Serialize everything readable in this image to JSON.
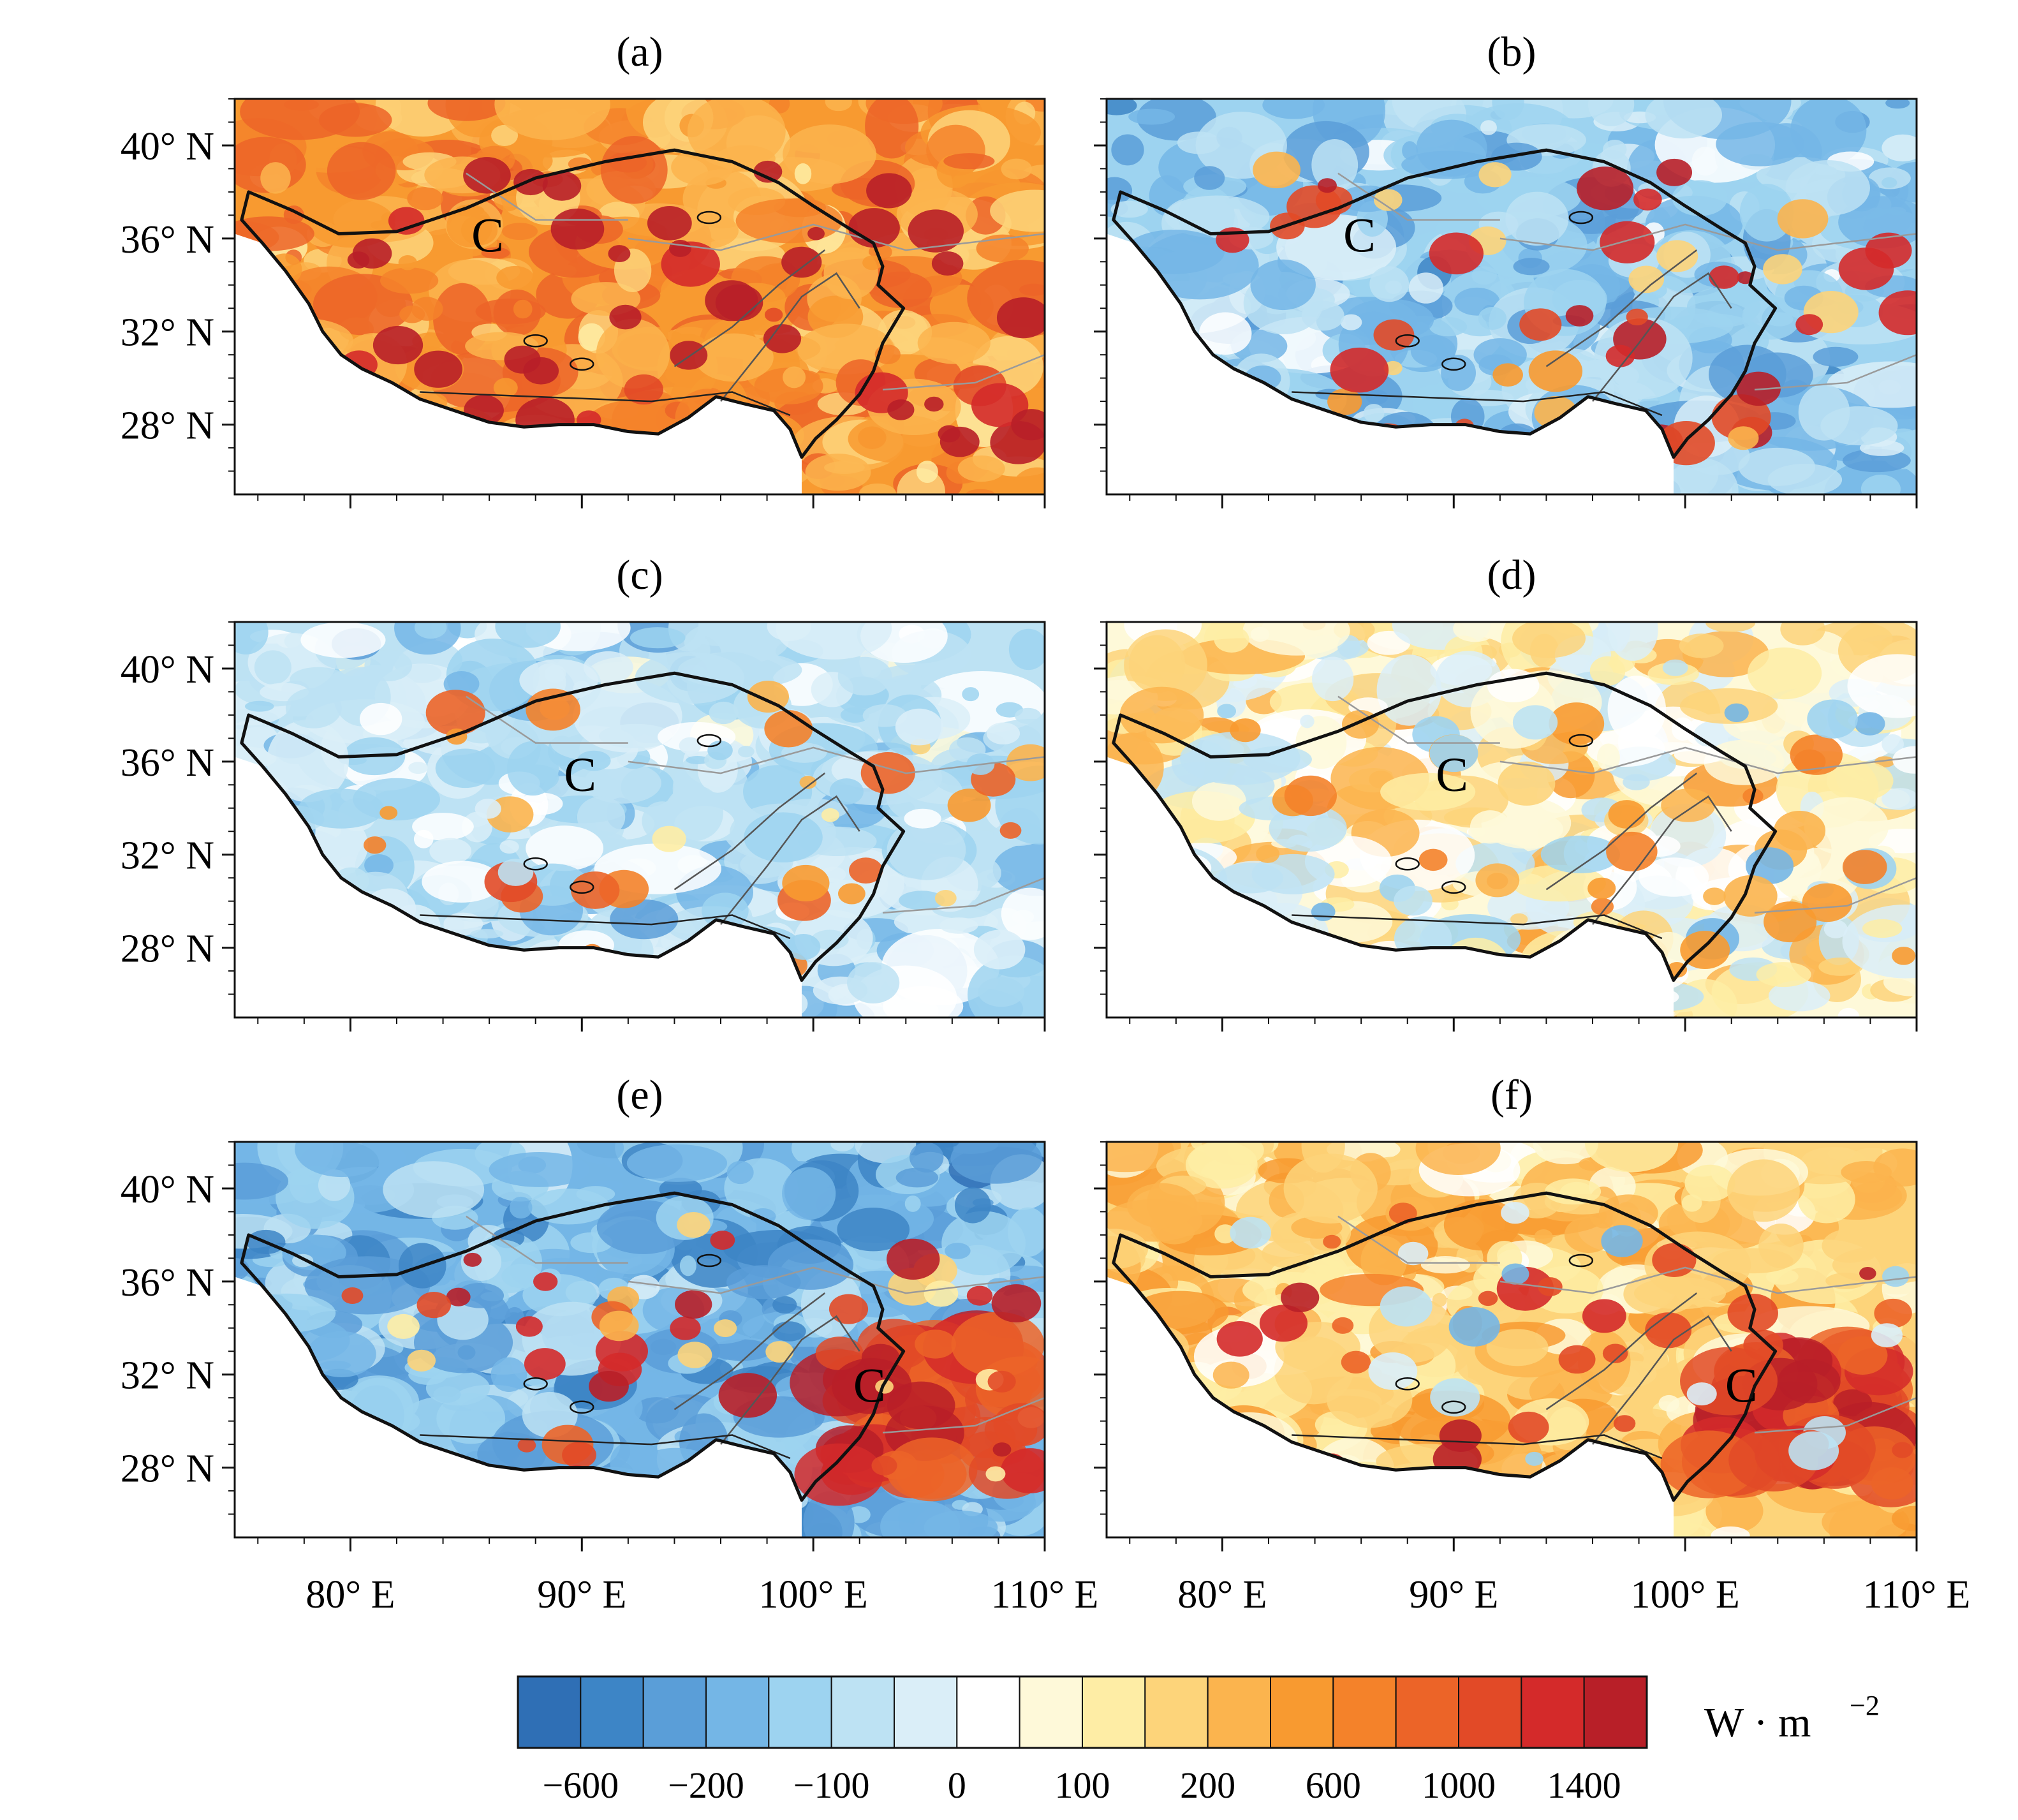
{
  "figure": {
    "panels": [
      {
        "id": "a",
        "title": "(a)",
        "center_label": "C",
        "pattern": "warm_strong",
        "center_lonlat": [
          86,
          36.2
        ]
      },
      {
        "id": "b",
        "title": "(b)",
        "center_label": "C",
        "pattern": "cool_mixed",
        "center_lonlat": [
          86,
          36.2
        ]
      },
      {
        "id": "c",
        "title": "(c)",
        "center_label": "C",
        "pattern": "cool_light",
        "center_lonlat": [
          90,
          35.5
        ]
      },
      {
        "id": "d",
        "title": "(d)",
        "center_label": "C",
        "pattern": "mixed_warm",
        "center_lonlat": [
          90,
          35.5
        ]
      },
      {
        "id": "e",
        "title": "(e)",
        "center_label": "C",
        "pattern": "cool_se_warm",
        "center_lonlat": [
          102.5,
          31.6
        ]
      },
      {
        "id": "f",
        "title": "(f)",
        "center_label": "C",
        "pattern": "warm_se_strong",
        "center_lonlat": [
          102.5,
          31.6
        ]
      }
    ],
    "lat_ticks": [
      {
        "value": 40,
        "label": "40° N"
      },
      {
        "value": 36,
        "label": "36° N"
      },
      {
        "value": 32,
        "label": "32° N"
      },
      {
        "value": 28,
        "label": "28° N"
      }
    ],
    "lon_ticks": [
      {
        "value": 80,
        "label": "80° E"
      },
      {
        "value": 90,
        "label": "90° E"
      },
      {
        "value": 100,
        "label": "100° E"
      },
      {
        "value": 110,
        "label": "110° E"
      }
    ],
    "lon_range": [
      75,
      110
    ],
    "lat_range": [
      25,
      42
    ],
    "colorbar": {
      "colors": [
        "#2f6fb5",
        "#3d85c6",
        "#5a9ed8",
        "#74b6e6",
        "#9dd3f0",
        "#bde2f3",
        "#daeef8",
        "#ffffff",
        "#fef9d9",
        "#feeda5",
        "#fdd47a",
        "#fbb44e",
        "#f89a30",
        "#f4822a",
        "#ec6428",
        "#e24a27",
        "#d42a2a",
        "#b81f28"
      ],
      "labels": [
        "−600",
        "−200",
        "−100",
        "0",
        "100",
        "200",
        "600",
        "1000",
        "1400"
      ],
      "unit": "W · m",
      "unit_sup": "−2"
    }
  }
}
